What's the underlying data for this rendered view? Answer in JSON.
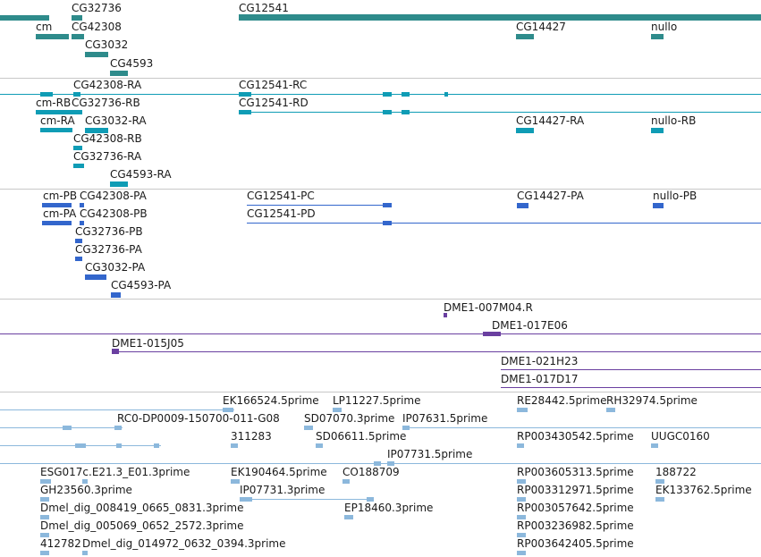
{
  "colors": {
    "gene": "#2e8b8b",
    "transcript": "#0f9cb5",
    "protein": "#3366cc",
    "clone": "#6a3fa0",
    "est": "#8cb8dc",
    "divider": "#c8c8c8"
  },
  "genes": {
    "labels": [
      "CG32736",
      "cm",
      "CG42308",
      "CG3032",
      "CG4593",
      "CG12541",
      "CG14427",
      "nullo"
    ]
  },
  "transcripts": {
    "labels": [
      "CG42308-RA",
      "cm-RB",
      "CG32736-RB",
      "cm-RA",
      "CG3032-RA",
      "CG42308-RB",
      "CG32736-RA",
      "CG4593-RA",
      "CG12541-RC",
      "CG12541-RD",
      "CG14427-RA",
      "nullo-RB"
    ]
  },
  "proteins": {
    "labels": [
      "cm-PB",
      "CG42308-PA",
      "cm-PA",
      "CG42308-PB",
      "CG32736-PB",
      "CG32736-PA",
      "CG3032-PA",
      "CG4593-PA",
      "CG12541-PC",
      "CG12541-PD",
      "CG14427-PA",
      "nullo-PB"
    ]
  },
  "clones": {
    "labels": [
      "DME1-007M04.R",
      "DME1-017E06",
      "DME1-015J05",
      "DME1-021H23",
      "DME1-017D17"
    ]
  },
  "ests": {
    "labels": [
      "EK166524.5prime",
      "LP11227.5prime",
      "RE28442.5prime",
      "RH32974.5prime",
      "RC0-DP0009-150700-011-G08",
      "SD07070.3prime",
      "IP07631.5prime",
      "311283",
      "SD06611.5prime",
      "RP003430542.5prime",
      "UUGC0160",
      "IP07731.5prime",
      "ESG017c.E21.3_E01.3prime",
      "EK190464.5prime",
      "CO188709",
      "RP003605313.5prime",
      "188722",
      "GH23560.3prime",
      "IP07731.3prime",
      "RP003312971.5prime",
      "EK133762.5prime",
      "Dmel_dig_008419_0665_0831.3prime",
      "EP18460.3prime",
      "RP003057642.5prime",
      "Dmel_dig_005069_0652_2572.3prime",
      "RP003236982.5prime",
      "412782",
      "Dmel_dig_014972_0632_0394.3prime",
      "RP003642405.5prime"
    ]
  }
}
